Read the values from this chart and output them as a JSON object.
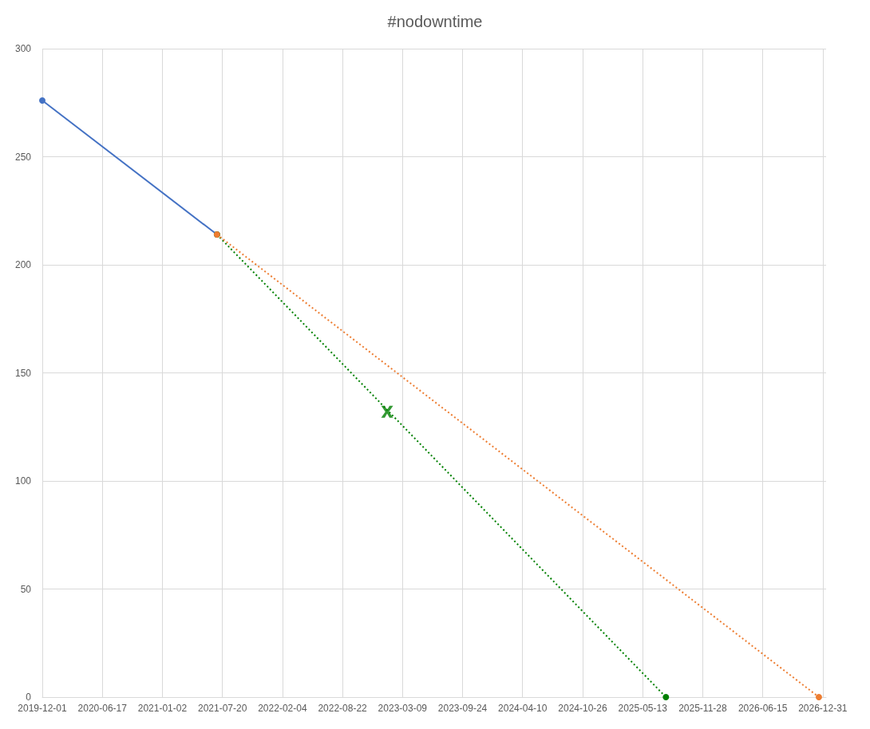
{
  "chart_data": {
    "type": "line",
    "title": "#nodowntime",
    "xlim": [
      "2019-12-01",
      "2027-01-11"
    ],
    "xticks": [
      "2019-12-01",
      "2020-06-17",
      "2021-01-02",
      "2021-07-20",
      "2022-02-04",
      "2022-08-22",
      "2023-03-09",
      "2023-09-24",
      "2024-04-10",
      "2024-10-26",
      "2025-05-13",
      "2025-11-28",
      "2026-06-15",
      "2026-12-31"
    ],
    "ylim": [
      0,
      300
    ],
    "yticks": [
      0,
      50,
      100,
      150,
      200,
      250,
      300
    ],
    "grid": true,
    "series": [
      {
        "color": "#4472c4",
        "x": [
          "2019-12-01",
          "2021-07-02"
        ],
        "values": [
          276,
          214
        ],
        "marker": "circle",
        "line_style": "solid"
      },
      {
        "color": "#008000",
        "x": [
          "2021-07-02",
          "2025-07-29"
        ],
        "values": [
          214,
          0
        ],
        "marker": "circle",
        "line_style": "dotted"
      },
      {
        "color": "#ed7d31",
        "x": [
          "2021-07-02",
          "2026-12-18"
        ],
        "values": [
          214,
          0
        ],
        "marker": "circle",
        "line_style": "dotted"
      },
      {
        "type": "scatter",
        "color": "#008000",
        "x": [
          "2023-01-17"
        ],
        "values": [
          132
        ],
        "marker": "cross"
      }
    ]
  }
}
